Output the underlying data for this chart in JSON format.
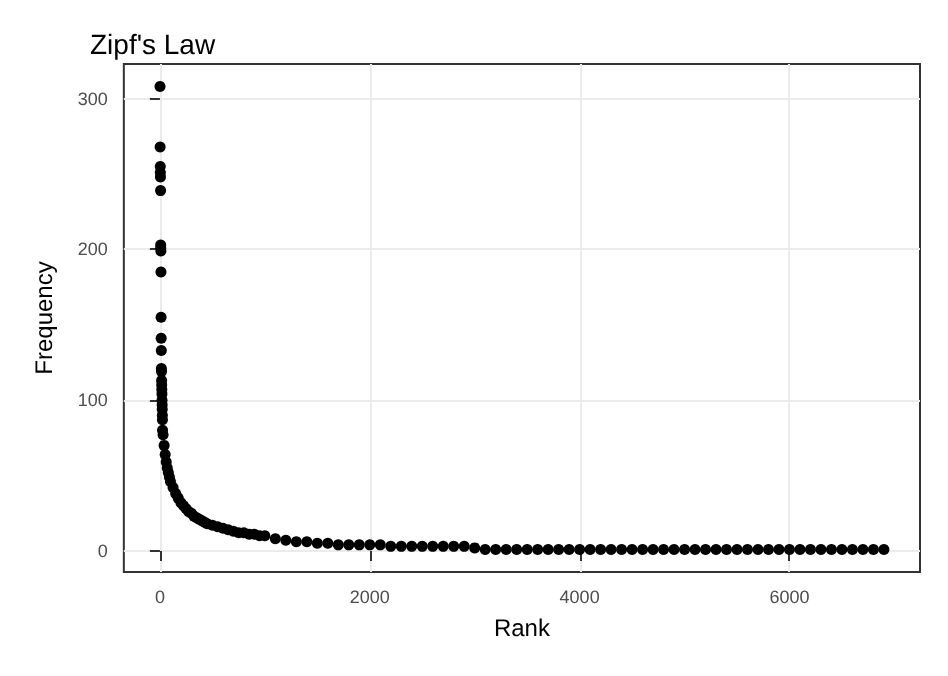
{
  "chart_data": {
    "type": "scatter",
    "title": "Zipf's Law",
    "xlabel": "Rank",
    "ylabel": "Frequency",
    "x": [
      1,
      2,
      3,
      4,
      5,
      6,
      7,
      8,
      9,
      10,
      11,
      12,
      13,
      14,
      15,
      16,
      17,
      18,
      19,
      20,
      21,
      22,
      23,
      24,
      25,
      30,
      40,
      50,
      60,
      70,
      80,
      90,
      100,
      125,
      150,
      175,
      200,
      225,
      250,
      275,
      300,
      325,
      350,
      375,
      400,
      425,
      450,
      500,
      550,
      600,
      650,
      700,
      750,
      800,
      850,
      900,
      950,
      1000,
      1100,
      1200,
      1300,
      1400,
      1500,
      1600,
      1700,
      1800,
      1900,
      2000,
      2100,
      2200,
      2300,
      2400,
      2500,
      2600,
      2700,
      2800,
      2900,
      3000,
      3100,
      3200,
      3300,
      3400,
      3500,
      3600,
      3700,
      3800,
      3900,
      4000,
      4100,
      4200,
      4300,
      4400,
      4500,
      4600,
      4700,
      4800,
      4900,
      5000,
      5100,
      5200,
      5300,
      5400,
      5500,
      5600,
      5700,
      5800,
      5900,
      6000,
      6100,
      6200,
      6300,
      6400,
      6500,
      6600,
      6700,
      6800,
      6900
    ],
    "values": [
      308,
      268,
      255,
      251,
      248,
      239,
      203,
      201,
      199,
      185,
      155,
      141,
      133,
      121,
      119,
      113,
      110,
      107,
      104,
      100,
      97,
      94,
      90,
      87,
      80,
      77,
      70,
      64,
      59,
      55,
      52,
      49,
      46,
      42,
      38,
      35,
      32,
      30,
      28,
      26,
      25,
      23,
      22,
      21,
      20,
      19,
      18,
      17,
      16,
      15,
      14,
      13,
      12,
      12,
      11,
      11,
      10,
      10,
      8,
      7,
      6,
      6,
      5,
      5,
      4,
      4,
      4,
      4,
      4,
      3,
      3,
      3,
      3,
      3,
      3,
      3,
      3,
      2,
      1,
      1,
      1,
      1,
      1,
      1,
      1,
      1,
      1,
      1,
      1,
      1,
      1,
      1,
      1,
      1,
      1,
      1,
      1,
      1,
      1,
      1,
      1,
      1,
      1,
      1,
      1,
      1,
      1,
      1,
      1,
      1,
      1,
      1,
      1,
      1,
      1,
      1,
      1
    ],
    "color": "#000000",
    "marker": "circle",
    "grid": true,
    "xlim": [
      -344,
      7244
    ],
    "xticks": [
      0,
      2000,
      4000,
      6000
    ],
    "ylim": [
      -14,
      323
    ],
    "yticks": [
      0,
      100,
      200,
      300
    ]
  }
}
